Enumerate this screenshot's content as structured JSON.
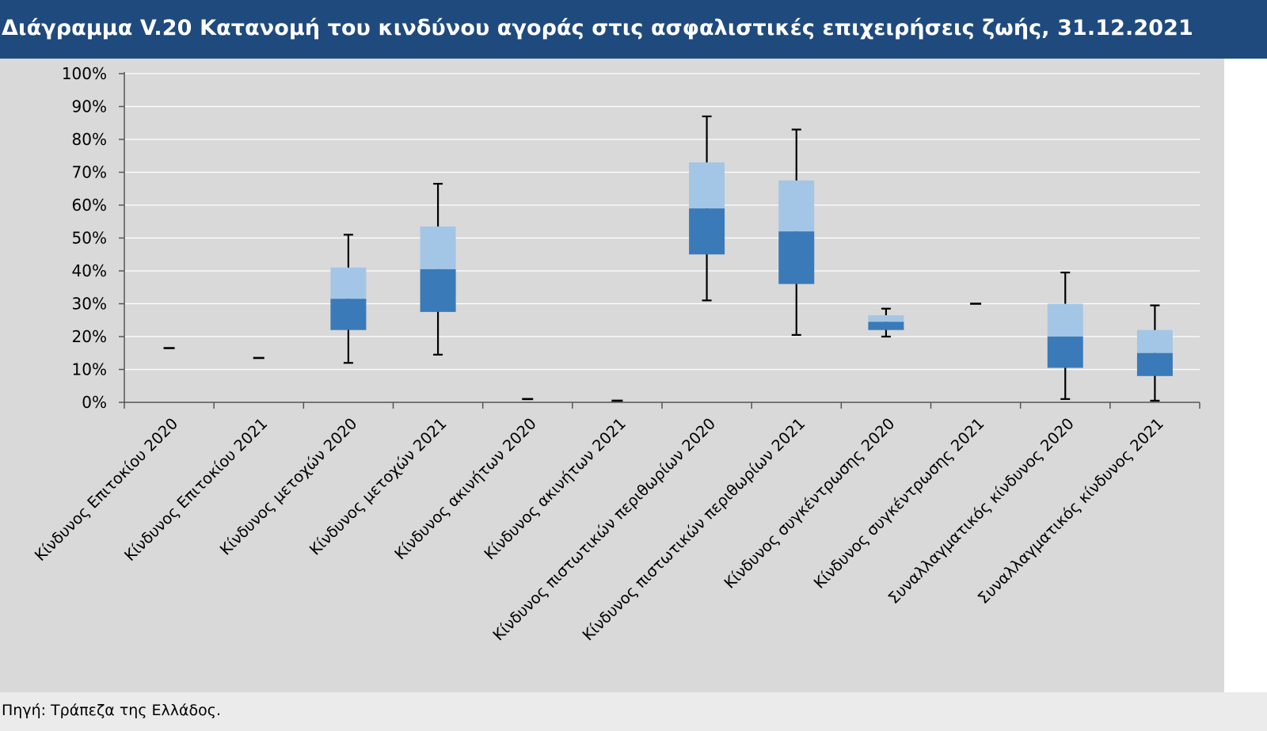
{
  "header": {
    "title": "Διάγραμμα V.20 Κατανομή του κινδύνου αγοράς στις ασφαλιστικές επιχειρήσεις ζωής, 31.12.2021"
  },
  "footer": {
    "source": "Πηγή: Τράπεζα της Ελλάδος."
  },
  "colors": {
    "title_bg": "#1f4a7d",
    "plot_bg": "#d9d9d9",
    "gridline": "#ffffff",
    "box_upper": "#a4c6e6",
    "box_lower": "#3a7ab8",
    "whisker": "#000000"
  },
  "chart_data": {
    "type": "box",
    "title": "Διάγραμμα V.20 Κατανομή του κινδύνου αγοράς στις ασφαλιστικές επιχειρήσεις ζωής, 31.12.2021",
    "ylim": [
      0,
      100
    ],
    "y_unit": "%",
    "yticks": [
      "0%",
      "10%",
      "20%",
      "30%",
      "40%",
      "50%",
      "60%",
      "70%",
      "80%",
      "90%",
      "100%"
    ],
    "grid": true,
    "categories": [
      "Κίνδυνος Επιτοκίου 2020",
      "Κίνδυνος Επιτοκίου 2021",
      "Κίνδυνος μετοχών 2020",
      "Κίνδυνος μετοχών 2021",
      "Κίνδυνος ακινήτων 2020",
      "Κίνδυνος ακινήτων 2021",
      "Κίνδυνος πιστωτικών περιθωρίων 2020",
      "Κίνδυνος πιστωτικών περιθωρίων 2021",
      "Κίνδυνος συγκέντρωσης 2020",
      "Κίνδυνος συγκέντρωσης 2021",
      "Συναλλαγματικός κίνδυνος 2020",
      "Συναλλαγματικός κίνδυνος 2021"
    ],
    "boxes": [
      {
        "min": 16.5,
        "q1": 16.5,
        "median": 16.5,
        "q3": 16.5,
        "max": 16.5
      },
      {
        "min": 13.5,
        "q1": 13.5,
        "median": 13.5,
        "q3": 13.5,
        "max": 13.5
      },
      {
        "min": 12,
        "q1": 22,
        "median": 31.5,
        "q3": 41,
        "max": 51
      },
      {
        "min": 14.5,
        "q1": 27.5,
        "median": 40.5,
        "q3": 53.5,
        "max": 66.5
      },
      {
        "min": 1,
        "q1": 1,
        "median": 1,
        "q3": 1,
        "max": 1
      },
      {
        "min": 0.5,
        "q1": 0.5,
        "median": 0.5,
        "q3": 0.5,
        "max": 0.5
      },
      {
        "min": 31,
        "q1": 45,
        "median": 59,
        "q3": 73,
        "max": 87
      },
      {
        "min": 20.5,
        "q1": 36,
        "median": 52,
        "q3": 67.5,
        "max": 83
      },
      {
        "min": 20,
        "q1": 22,
        "median": 24.5,
        "q3": 26.5,
        "max": 28.5
      },
      {
        "min": 29.5,
        "q1": 29.8,
        "median": 30,
        "q3": 30.2,
        "max": 30.5
      },
      {
        "min": 1,
        "q1": 10.5,
        "median": 20,
        "q3": 30,
        "max": 39.5
      },
      {
        "min": 0.5,
        "q1": 8,
        "median": 15,
        "q3": 22,
        "max": 29.5
      }
    ]
  }
}
